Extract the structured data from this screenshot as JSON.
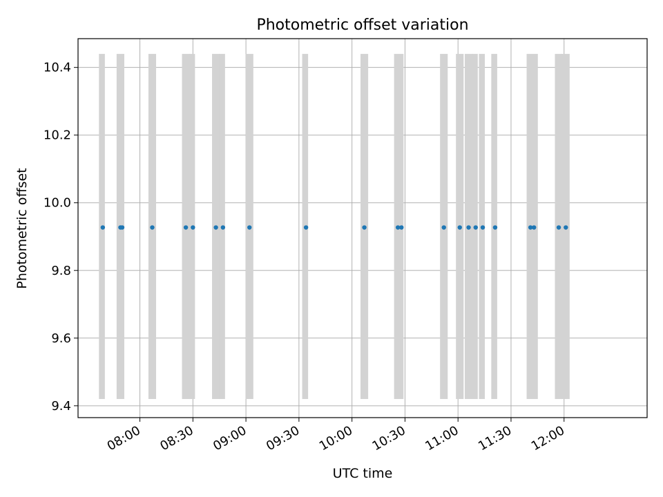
{
  "chart_data": {
    "type": "scatter",
    "title": "Photometric offset variation",
    "xlabel": "UTC time",
    "ylabel": "Photometric offset",
    "x_domain": [
      "07:25",
      "12:47"
    ],
    "ylim": [
      9.365,
      10.485
    ],
    "grid": true,
    "x_ticks": [
      "08:00",
      "08:30",
      "09:00",
      "09:30",
      "10:00",
      "10:30",
      "11:00",
      "11:30",
      "12:00"
    ],
    "y_ticks": [
      9.4,
      9.6,
      9.8,
      10.0,
      10.2,
      10.4
    ],
    "y_tick_labels": [
      "9.4",
      "9.6",
      "9.8",
      "10.0",
      "10.2",
      "10.4"
    ],
    "band_range": [
      9.42,
      10.44
    ],
    "point_color": "#1f77b4",
    "band_color": "#d3d3d3",
    "points": [
      {
        "x": "07:39",
        "y": 9.927,
        "band_start": "07:38",
        "band_end": "07:39"
      },
      {
        "x": "07:49",
        "y": 9.927,
        "band_start": "07:48",
        "band_end": "07:50"
      },
      {
        "x": "07:50",
        "y": 9.927,
        "band_start": "07:48",
        "band_end": "07:50"
      },
      {
        "x": "08:07",
        "y": 9.927,
        "band_start": "08:06",
        "band_end": "08:08"
      },
      {
        "x": "08:26",
        "y": 9.927,
        "band_start": "08:25",
        "band_end": "08:27"
      },
      {
        "x": "08:30",
        "y": 9.927,
        "band_start": "08:29",
        "band_end": "08:30"
      },
      {
        "x": "08:43",
        "y": 9.927,
        "band_start": "08:42",
        "band_end": "08:44"
      },
      {
        "x": "08:47",
        "y": 9.927,
        "band_start": "08:46",
        "band_end": "08:47"
      },
      {
        "x": "09:02",
        "y": 9.927,
        "band_start": "09:01",
        "band_end": "09:03"
      },
      {
        "x": "09:34",
        "y": 9.927,
        "band_start": "09:33",
        "band_end": "09:34"
      },
      {
        "x": "10:07",
        "y": 9.927,
        "band_start": "10:06",
        "band_end": "10:08"
      },
      {
        "x": "10:26",
        "y": 9.927,
        "band_start": "10:25",
        "band_end": "10:28"
      },
      {
        "x": "10:28",
        "y": 9.927,
        "band_start": "10:25",
        "band_end": "10:28"
      },
      {
        "x": "10:52",
        "y": 9.927,
        "band_start": "10:51",
        "band_end": "10:53"
      },
      {
        "x": "11:01",
        "y": 9.927,
        "band_start": "11:00",
        "band_end": "11:02"
      },
      {
        "x": "11:06",
        "y": 9.927,
        "band_start": "11:05",
        "band_end": "11:07"
      },
      {
        "x": "11:10",
        "y": 9.927,
        "band_start": "11:09",
        "band_end": "11:10"
      },
      {
        "x": "11:14",
        "y": 9.927,
        "band_start": "11:13",
        "band_end": "11:14"
      },
      {
        "x": "11:21",
        "y": 9.927,
        "band_start": "11:20",
        "band_end": "11:21"
      },
      {
        "x": "11:41",
        "y": 9.927,
        "band_start": "11:40",
        "band_end": "11:44"
      },
      {
        "x": "11:43",
        "y": 9.927,
        "band_start": "11:40",
        "band_end": "11:44"
      },
      {
        "x": "11:57",
        "y": 9.927,
        "band_start": "11:56",
        "band_end": "11:58"
      },
      {
        "x": "12:01",
        "y": 9.927,
        "band_start": "12:00",
        "band_end": "12:02"
      }
    ]
  }
}
